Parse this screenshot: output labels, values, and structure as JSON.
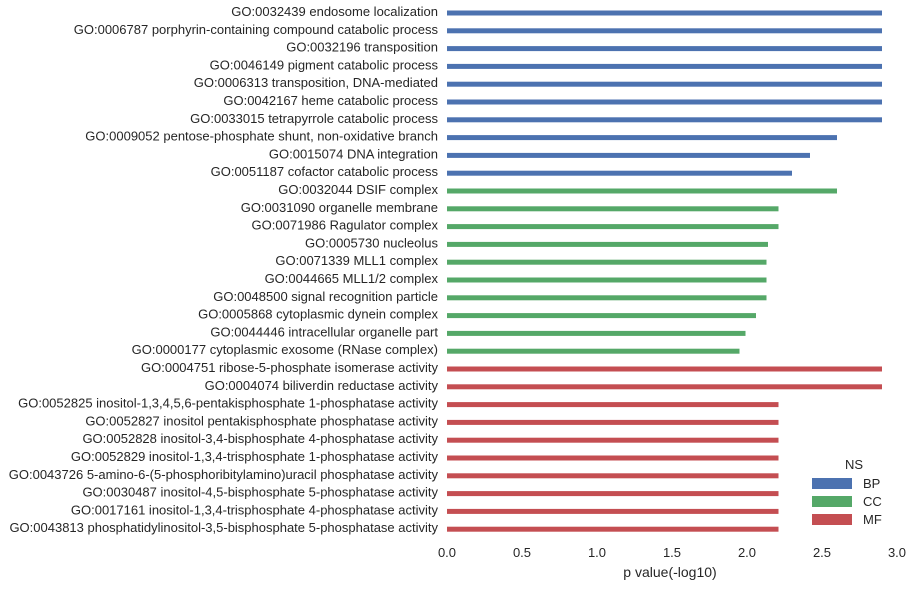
{
  "chart_data": {
    "type": "bar",
    "orientation": "horizontal",
    "xlabel": "p value(-log10)",
    "xlim": [
      0,
      3.0
    ],
    "xticks": [
      "0.0",
      "0.5",
      "1.0",
      "1.5",
      "2.0",
      "2.5",
      "3.0"
    ],
    "grid": false,
    "legend": {
      "title": "NS",
      "placement": "bottom-right",
      "entries": [
        {
          "name": "BP",
          "color": "#4c72b0"
        },
        {
          "name": "CC",
          "color": "#55a868"
        },
        {
          "name": "MF",
          "color": "#c44e52"
        }
      ]
    },
    "categories": [
      {
        "label": "GO:0032439 endosome localization",
        "value": 2.9,
        "group": "BP"
      },
      {
        "label": "GO:0006787 porphyrin-containing compound catabolic process",
        "value": 2.9,
        "group": "BP"
      },
      {
        "label": "GO:0032196 transposition",
        "value": 2.9,
        "group": "BP"
      },
      {
        "label": "GO:0046149 pigment catabolic process",
        "value": 2.9,
        "group": "BP"
      },
      {
        "label": "GO:0006313 transposition, DNA-mediated",
        "value": 2.9,
        "group": "BP"
      },
      {
        "label": "GO:0042167 heme catabolic process",
        "value": 2.9,
        "group": "BP"
      },
      {
        "label": "GO:0033015 tetrapyrrole catabolic process",
        "value": 2.9,
        "group": "BP"
      },
      {
        "label": "GO:0009052 pentose-phosphate shunt, non-oxidative branch",
        "value": 2.6,
        "group": "BP"
      },
      {
        "label": "GO:0015074 DNA integration",
        "value": 2.42,
        "group": "BP"
      },
      {
        "label": "GO:0051187 cofactor catabolic process",
        "value": 2.3,
        "group": "BP"
      },
      {
        "label": "GO:0032044 DSIF complex",
        "value": 2.6,
        "group": "CC"
      },
      {
        "label": "GO:0031090 organelle membrane",
        "value": 2.21,
        "group": "CC"
      },
      {
        "label": "GO:0071986 Ragulator complex",
        "value": 2.21,
        "group": "CC"
      },
      {
        "label": "GO:0005730 nucleolus",
        "value": 2.14,
        "group": "CC"
      },
      {
        "label": "GO:0071339 MLL1 complex",
        "value": 2.13,
        "group": "CC"
      },
      {
        "label": "GO:0044665 MLL1/2 complex",
        "value": 2.13,
        "group": "CC"
      },
      {
        "label": "GO:0048500 signal recognition particle",
        "value": 2.13,
        "group": "CC"
      },
      {
        "label": "GO:0005868 cytoplasmic dynein complex",
        "value": 2.06,
        "group": "CC"
      },
      {
        "label": "GO:0044446 intracellular organelle part",
        "value": 1.99,
        "group": "CC"
      },
      {
        "label": "GO:0000177 cytoplasmic exosome (RNase complex)",
        "value": 1.95,
        "group": "CC"
      },
      {
        "label": "GO:0004751 ribose-5-phosphate isomerase activity",
        "value": 2.9,
        "group": "MF"
      },
      {
        "label": "GO:0004074 biliverdin reductase activity",
        "value": 2.9,
        "group": "MF"
      },
      {
        "label": "GO:0052825 inositol-1,3,4,5,6-pentakisphosphate 1-phosphatase activity",
        "value": 2.21,
        "group": "MF"
      },
      {
        "label": "GO:0052827 inositol pentakisphosphate phosphatase activity",
        "value": 2.21,
        "group": "MF"
      },
      {
        "label": "GO:0052828 inositol-3,4-bisphosphate 4-phosphatase activity",
        "value": 2.21,
        "group": "MF"
      },
      {
        "label": "GO:0052829 inositol-1,3,4-trisphosphate 1-phosphatase activity",
        "value": 2.21,
        "group": "MF"
      },
      {
        "label": "GO:0043726 5-amino-6-(5-phosphoribitylamino)uracil phosphatase activity",
        "value": 2.21,
        "group": "MF"
      },
      {
        "label": "GO:0030487 inositol-4,5-bisphosphate 5-phosphatase activity",
        "value": 2.21,
        "group": "MF"
      },
      {
        "label": "GO:0017161 inositol-1,3,4-trisphosphate 4-phosphatase activity",
        "value": 2.21,
        "group": "MF"
      },
      {
        "label": "GO:0043813 phosphatidylinositol-3,5-bisphosphate 5-phosphatase activity",
        "value": 2.21,
        "group": "MF"
      }
    ]
  }
}
